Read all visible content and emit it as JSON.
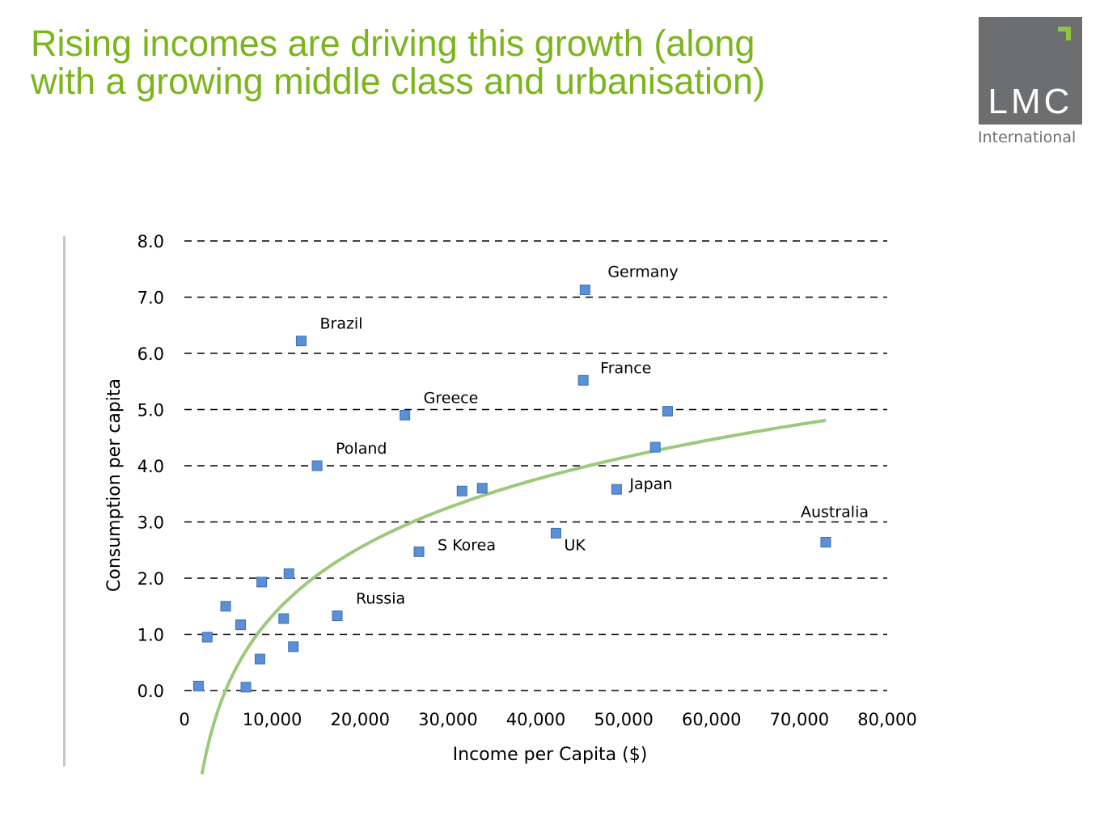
{
  "title_lines": [
    "Rising incomes are driving this growth (along",
    "with a growing middle class and urbanisation)"
  ],
  "logo": {
    "text": "LMC",
    "subtitle": "International",
    "box_color": "#6d6e70",
    "accent_color": "#8dc63f"
  },
  "colors": {
    "title": "#7ab51d",
    "marker": "#5b8fd6",
    "marker_edge": "#3b6fb8",
    "trend": "#9cc97a"
  },
  "chart_data": {
    "type": "scatter",
    "title": "",
    "xlabel": "Income per Capita ($)",
    "ylabel": "Consumption per capita",
    "xlim": [
      0,
      80000
    ],
    "ylim": [
      0,
      8
    ],
    "xticks": [
      0,
      10000,
      20000,
      30000,
      40000,
      50000,
      60000,
      70000,
      80000
    ],
    "xtick_labels": [
      "0",
      "10,000",
      "20,000",
      "30,000",
      "40,000",
      "50,000",
      "60,000",
      "70,000",
      "80,000"
    ],
    "yticks": [
      0,
      1,
      2,
      3,
      4,
      5,
      6,
      7,
      8
    ],
    "ytick_labels": [
      "0.0",
      "1.0",
      "2.0",
      "3.0",
      "4.0",
      "5.0",
      "6.0",
      "7.0",
      "8.0"
    ],
    "grid": "horizontal dashed",
    "legend": "none",
    "points": [
      {
        "x": 1600,
        "y": 0.08
      },
      {
        "x": 2600,
        "y": 0.95
      },
      {
        "x": 4700,
        "y": 1.5
      },
      {
        "x": 6400,
        "y": 1.17
      },
      {
        "x": 7000,
        "y": 0.06
      },
      {
        "x": 8600,
        "y": 0.56
      },
      {
        "x": 8800,
        "y": 1.93
      },
      {
        "x": 11300,
        "y": 1.28
      },
      {
        "x": 11900,
        "y": 2.08
      },
      {
        "x": 12400,
        "y": 0.78
      },
      {
        "x": 13300,
        "y": 6.22,
        "label": "Brazil"
      },
      {
        "x": 15100,
        "y": 4.0,
        "label": "Poland"
      },
      {
        "x": 17400,
        "y": 1.33,
        "label": "Russia"
      },
      {
        "x": 25100,
        "y": 4.9,
        "label": "Greece"
      },
      {
        "x": 26700,
        "y": 2.47,
        "label": "S Korea"
      },
      {
        "x": 31600,
        "y": 3.55
      },
      {
        "x": 33900,
        "y": 3.6
      },
      {
        "x": 42300,
        "y": 2.8,
        "label": "UK"
      },
      {
        "x": 45400,
        "y": 5.52,
        "label": "France"
      },
      {
        "x": 45600,
        "y": 7.13,
        "label": "Germany"
      },
      {
        "x": 49200,
        "y": 3.58,
        "label": "Japan"
      },
      {
        "x": 53600,
        "y": 4.33
      },
      {
        "x": 55000,
        "y": 4.97
      },
      {
        "x": 73000,
        "y": 2.64,
        "label": "Australia"
      }
    ],
    "trendline": {
      "type": "logarithmic",
      "x_range": [
        2000,
        73000
      ],
      "a": -2.7,
      "b": 1.75
    }
  }
}
